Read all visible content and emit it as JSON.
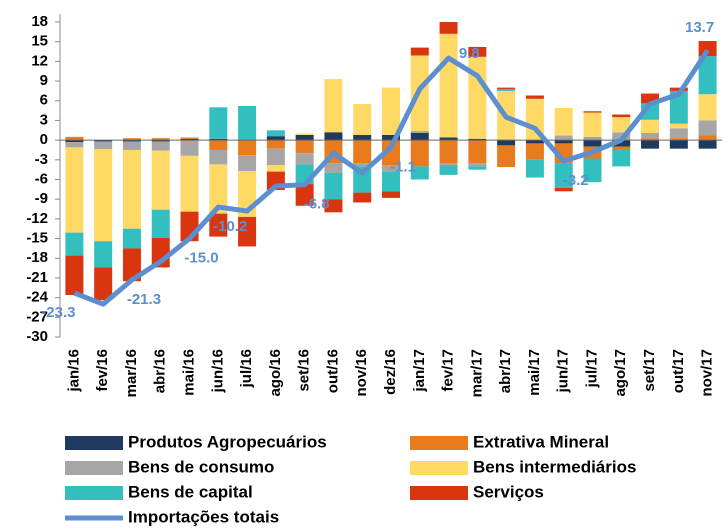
{
  "chart_data": {
    "type": "bar",
    "stacked": true,
    "categories": [
      "jan/16",
      "fev/16",
      "mar/16",
      "abr/16",
      "mai/16",
      "jun/16",
      "jul/16",
      "ago/16",
      "set/16",
      "out/16",
      "nov/16",
      "dez/16",
      "jan/17",
      "fev/17",
      "mar/17",
      "abr/17",
      "mai/17",
      "jun/17",
      "jul/17",
      "ago/17",
      "set/17",
      "out/17",
      "nov/17"
    ],
    "series": [
      {
        "name": "Produtos Agropecuários",
        "color": "#1f3a5f",
        "values": [
          -0.3,
          -0.2,
          -0.2,
          -0.2,
          0.2,
          0.2,
          0,
          0.6,
          0.8,
          1.2,
          0.8,
          0.8,
          1.1,
          0.4,
          0.2,
          -0.8,
          -0.5,
          -0.5,
          -1,
          -1,
          -1.3,
          -1.3,
          -1.3
        ]
      },
      {
        "name": "Extrativa Mineral",
        "color": "#e87b1e",
        "values": [
          0.5,
          0,
          0.3,
          0.3,
          0.2,
          -1.5,
          -2.3,
          -1.3,
          -2,
          -3.5,
          -3.5,
          -3.8,
          -4,
          -3.5,
          -3.5,
          -3.3,
          -2.5,
          -3,
          -1.8,
          -0.5,
          0.3,
          0.3,
          0.7
        ]
      },
      {
        "name": "Bens de consumo",
        "color": "#a6a6a6",
        "values": [
          -0.8,
          -1.2,
          -1.3,
          -1.4,
          -2.4,
          -2.2,
          -2.4,
          -2.5,
          -1.7,
          -1.5,
          -0.5,
          -1,
          0.3,
          -0.3,
          -0.5,
          0,
          0,
          0.7,
          0.5,
          1.2,
          0.8,
          1.5,
          2.3
        ]
      },
      {
        "name": "Bens intermediários",
        "color": "#ffd966",
        "values": [
          -13,
          -14,
          -12,
          -9,
          -8.5,
          -7.5,
          -7,
          -1,
          0.2,
          8.1,
          4.7,
          7.2,
          11.5,
          15.8,
          12.5,
          7.5,
          6.3,
          4.2,
          3.7,
          2.3,
          2,
          0.7,
          4
        ]
      },
      {
        "name": "Bens de capital",
        "color": "#33bfbf",
        "values": [
          -3.5,
          -4,
          -3,
          -4.3,
          0,
          4.8,
          5.2,
          0.9,
          -3,
          -4,
          -4,
          -3,
          -2,
          -1.5,
          -0.5,
          0.3,
          -2.7,
          -3.8,
          -3.6,
          -2.5,
          2.5,
          5,
          5.8
        ]
      },
      {
        "name": "Serviços",
        "color": "#d9350f",
        "values": [
          -6,
          -5,
          -5,
          -4.5,
          -4.5,
          -3.5,
          -4.5,
          -2.8,
          -3.3,
          -2,
          -1.5,
          -1,
          1.2,
          1.8,
          1.5,
          0.2,
          0.5,
          -0.5,
          0.2,
          0.4,
          1.5,
          0.5,
          2.3
        ]
      }
    ],
    "line": {
      "name": "Importações totais",
      "color": "#5b8fd0",
      "values": [
        -23.3,
        -25,
        -21.3,
        -18.5,
        -15.0,
        -10.2,
        -10.8,
        -7,
        -6.8,
        -2,
        -5,
        -1.1,
        7.8,
        12.5,
        9.8,
        3.5,
        1.8,
        -3.2,
        -1.8,
        0,
        5.5,
        7,
        13.7
      ],
      "value_labels": [
        "-23.3",
        null,
        "-21.3",
        null,
        "-15.0",
        "-10.2",
        null,
        null,
        "-6.8",
        null,
        null,
        "-1.1",
        null,
        null,
        "9.8",
        null,
        null,
        "-3.2",
        null,
        null,
        null,
        null,
        "13.7"
      ]
    },
    "ylim": [
      -30,
      18
    ],
    "yticks": [
      -30,
      -27,
      -24,
      -21,
      -18,
      -15,
      -12,
      -9,
      -6,
      -3,
      0,
      3,
      6,
      9,
      12,
      15,
      18
    ]
  }
}
